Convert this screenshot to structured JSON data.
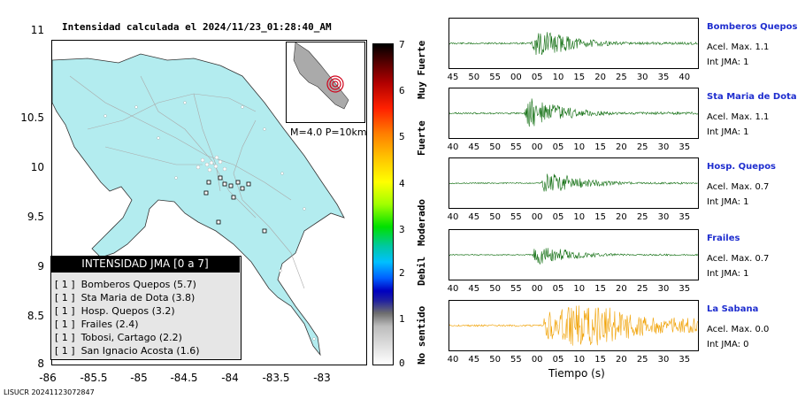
{
  "map": {
    "title": "Intensidad calculada el 2024/11/23_01:28:40_AM",
    "y_ticks": [
      "11",
      "10.5",
      "10",
      "9.5",
      "9",
      "8.5",
      "8"
    ],
    "x_ticks": [
      "-86",
      "-85.5",
      "-85",
      "-84.5",
      "-84",
      "-83.5",
      "-83"
    ],
    "inset_caption": "M=4.0 P=10km",
    "land_color": "#b3ecef"
  },
  "legend": {
    "title": "INTENSIDAD JMA [0 a 7]",
    "items": [
      {
        "level": "[ 1 ]",
        "station": "Bomberos Quepos (5.7)"
      },
      {
        "level": "[ 1 ]",
        "station": "Sta Maria de Dota (3.8)"
      },
      {
        "level": "[ 1 ]",
        "station": "Hosp. Quepos (3.2)"
      },
      {
        "level": "[ 1 ]",
        "station": "Frailes (2.4)"
      },
      {
        "level": "[ 1 ]",
        "station": "Tobosi, Cartago (2.2)"
      },
      {
        "level": "[ 1 ]",
        "station": "San Ignacio Acosta (1.6)"
      }
    ]
  },
  "colorbar": {
    "numbers": [
      "7",
      "6",
      "5",
      "4",
      "3",
      "2",
      "1",
      "0"
    ],
    "labels": [
      "Muy Fuerte",
      "Fuerte",
      "Moderado",
      "Debil",
      "No sentido"
    ]
  },
  "stations": [
    {
      "name": "Bomberos Quepos",
      "acel": "Acel. Max. 1.1",
      "int": "Int JMA: 1",
      "color": "#0a6a0a",
      "ticks": [
        "45",
        "50",
        "55",
        "00",
        "05",
        "10",
        "15",
        "20",
        "25",
        "30",
        "35",
        "40"
      ]
    },
    {
      "name": "Sta Maria de Dota",
      "acel": "Acel. Max. 1.1",
      "int": "Int JMA: 1",
      "color": "#0a6a0a",
      "ticks": [
        "40",
        "45",
        "50",
        "55",
        "00",
        "05",
        "10",
        "15",
        "20",
        "25",
        "30",
        "35"
      ]
    },
    {
      "name": "Hosp. Quepos",
      "acel": "Acel. Max. 0.7",
      "int": "Int JMA: 1",
      "color": "#0a6a0a",
      "ticks": [
        "40",
        "45",
        "50",
        "55",
        "00",
        "05",
        "10",
        "15",
        "20",
        "25",
        "30",
        "35"
      ]
    },
    {
      "name": "Frailes",
      "acel": "Acel. Max. 0.7",
      "int": "Int JMA: 1",
      "color": "#0a6a0a",
      "ticks": [
        "40",
        "45",
        "50",
        "55",
        "00",
        "05",
        "10",
        "15",
        "20",
        "25",
        "30",
        "35"
      ]
    },
    {
      "name": "La Sabana",
      "acel": "Acel. Max. 0.0",
      "int": "Int JMA: 0",
      "color": "#f0a000",
      "ticks": [
        "40",
        "45",
        "50",
        "55",
        "00",
        "05",
        "10",
        "15",
        "20",
        "25",
        "30",
        "35"
      ]
    }
  ],
  "traces": {
    "xlabel": "Tiempo (s)"
  },
  "footer": "LISUCR 20241123072847"
}
